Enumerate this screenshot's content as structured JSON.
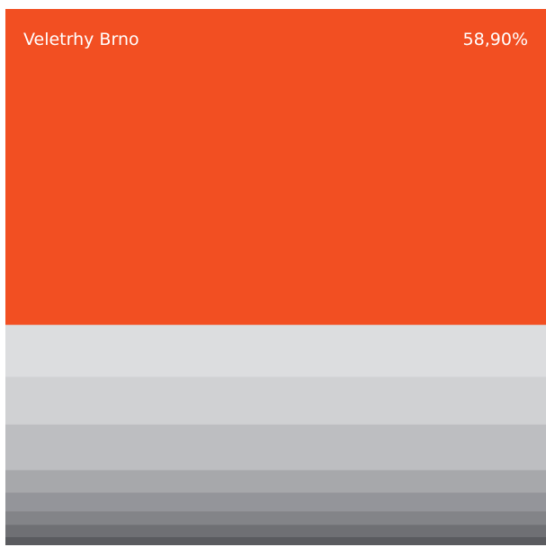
{
  "chart_data": {
    "type": "bar",
    "orientation": "stacked-vertical-single",
    "segments": [
      {
        "name": "Veletrhy Brno",
        "value": 58.9,
        "value_label": "58,90%",
        "color": "#F24F22",
        "show_label": true
      },
      {
        "name": "",
        "value": 9.7,
        "color": "#DCDDDF",
        "show_label": false
      },
      {
        "name": "",
        "value": 8.9,
        "color": "#D0D1D3",
        "show_label": false
      },
      {
        "name": "",
        "value": 8.5,
        "color": "#BDBEC1",
        "show_label": false
      },
      {
        "name": "",
        "value": 4.2,
        "color": "#A7A8AB",
        "show_label": false
      },
      {
        "name": "",
        "value": 3.5,
        "color": "#94959A",
        "show_label": false
      },
      {
        "name": "",
        "value": 2.5,
        "color": "#838488",
        "show_label": false
      },
      {
        "name": "",
        "value": 2.3,
        "color": "#6F7074",
        "show_label": false
      },
      {
        "name": "",
        "value": 1.5,
        "color": "#5A5B5F",
        "show_label": false
      }
    ],
    "total": 100
  }
}
